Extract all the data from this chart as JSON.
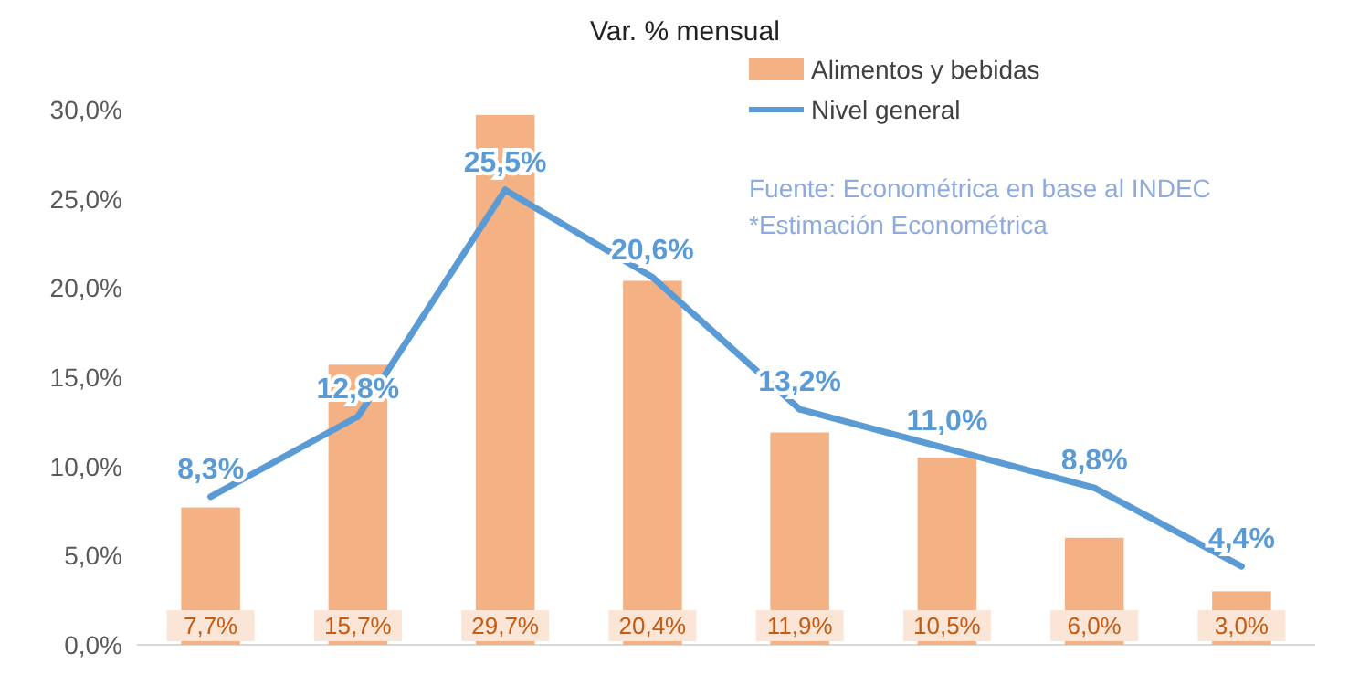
{
  "chart_data": {
    "type": "bar",
    "subtitle": "Var. % mensual",
    "categories": [
      null,
      null,
      null,
      null,
      null,
      null,
      null,
      null
    ],
    "series": [
      {
        "name": "Alimentos y bebidas",
        "color": "#f4b183",
        "values": [
          7.7,
          15.7,
          29.7,
          20.4,
          11.9,
          10.5,
          6.0,
          3.0
        ],
        "value_labels": [
          "7,7%",
          "15,7%",
          "29,7%",
          "20,4%",
          "11,9%",
          "10,5%",
          "6,0%",
          "3,0%"
        ]
      },
      {
        "name": "Nivel general",
        "type": "line",
        "color": "#5b9bd5",
        "values": [
          8.3,
          12.8,
          25.5,
          20.6,
          13.2,
          11.0,
          8.8,
          4.4
        ],
        "value_labels": [
          "8,3%",
          "12,8%",
          "25,5%",
          "20,6%",
          "13,2%",
          "11,0%",
          "8,8%",
          "4,4%"
        ]
      }
    ],
    "ylim": [
      0,
      30
    ],
    "yticks": [
      {
        "value": 0,
        "label": "0,0%"
      },
      {
        "value": 5,
        "label": "5,0%"
      },
      {
        "value": 10,
        "label": "10,0%"
      },
      {
        "value": 15,
        "label": "15,0%"
      },
      {
        "value": 20,
        "label": "20,0%"
      },
      {
        "value": 25,
        "label": "25,0%"
      },
      {
        "value": 30,
        "label": "30,0%"
      }
    ],
    "legend": "top right",
    "annotations": [
      "Fuente: Econométrica en base al INDEC",
      "*Estimación Econométrica"
    ]
  }
}
